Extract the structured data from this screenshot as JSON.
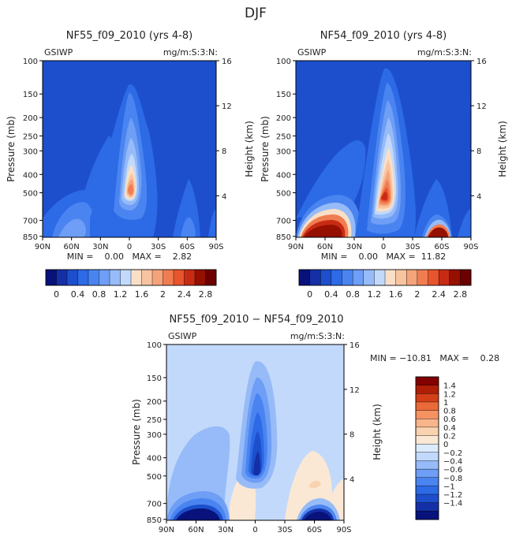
{
  "title": "DJF",
  "colors": {
    "cmap": [
      "#08127a",
      "#1530a6",
      "#1d4fcc",
      "#2c6ae6",
      "#4a84f0",
      "#6e9ef5",
      "#96bbf8",
      "#c2d9fb",
      "#f9dfc6",
      "#f8c4a0",
      "#f5a37a",
      "#f07d52",
      "#e8552c",
      "#c82b14",
      "#961000",
      "#6c0000"
    ],
    "diff": [
      "#08127a",
      "#1530a6",
      "#1d4fcc",
      "#2c6ae6",
      "#4a84f0",
      "#6e9ef5",
      "#96bbf8",
      "#c2d9fb",
      "#dcebfc",
      "#fbe8d4",
      "#f9d2b0",
      "#f8b48a",
      "#f59262",
      "#ea6a38",
      "#d43f18",
      "#b01e06",
      "#820000"
    ]
  },
  "common": {
    "left_label": "GSIWP",
    "right_label": "mg/m:S:3:N:",
    "ylabel": "Pressure (mb)",
    "ylabel_right": "Height (km)",
    "pressure_ticks": [
      "100",
      "150",
      "200",
      "250",
      "300",
      "400",
      "500",
      "700",
      "850"
    ],
    "height_ticks": [
      "16",
      "12",
      "8",
      "4"
    ],
    "lat_ticks": [
      "90N",
      "60N",
      "30N",
      "0",
      "30S",
      "60S",
      "90S"
    ]
  },
  "chart_data": [
    {
      "type": "contour",
      "title": "NF55_f09_2010 (yrs 4-8)",
      "stats": "MIN =    0.00   MAX =    2.82",
      "min": 0.0,
      "max": 2.82,
      "colorbar_labels": [
        "0",
        "0.4",
        "0.8",
        "1.2",
        "1.6",
        "2",
        "2.4",
        "2.8"
      ]
    },
    {
      "type": "contour",
      "title": "NF54_f09_2010 (yrs 4-8)",
      "stats": "MIN =    0.00   MAX =  11.82",
      "min": 0.0,
      "max": 11.82,
      "colorbar_labels": [
        "0",
        "0.4",
        "0.8",
        "1.2",
        "1.6",
        "2",
        "2.4",
        "2.8"
      ]
    },
    {
      "type": "contour",
      "title": "NF55_f09_2010 − NF54_f09_2010",
      "stats": "MIN = −10.81   MAX =    0.28",
      "min": -10.81,
      "max": 0.28,
      "colorbar_labels": [
        "1.4",
        "1.2",
        "1",
        "0.8",
        "0.6",
        "0.4",
        "0.2",
        "0",
        "−0.2",
        "−0.4",
        "−0.6",
        "−0.8",
        "−1",
        "−1.2",
        "−1.4"
      ]
    }
  ]
}
